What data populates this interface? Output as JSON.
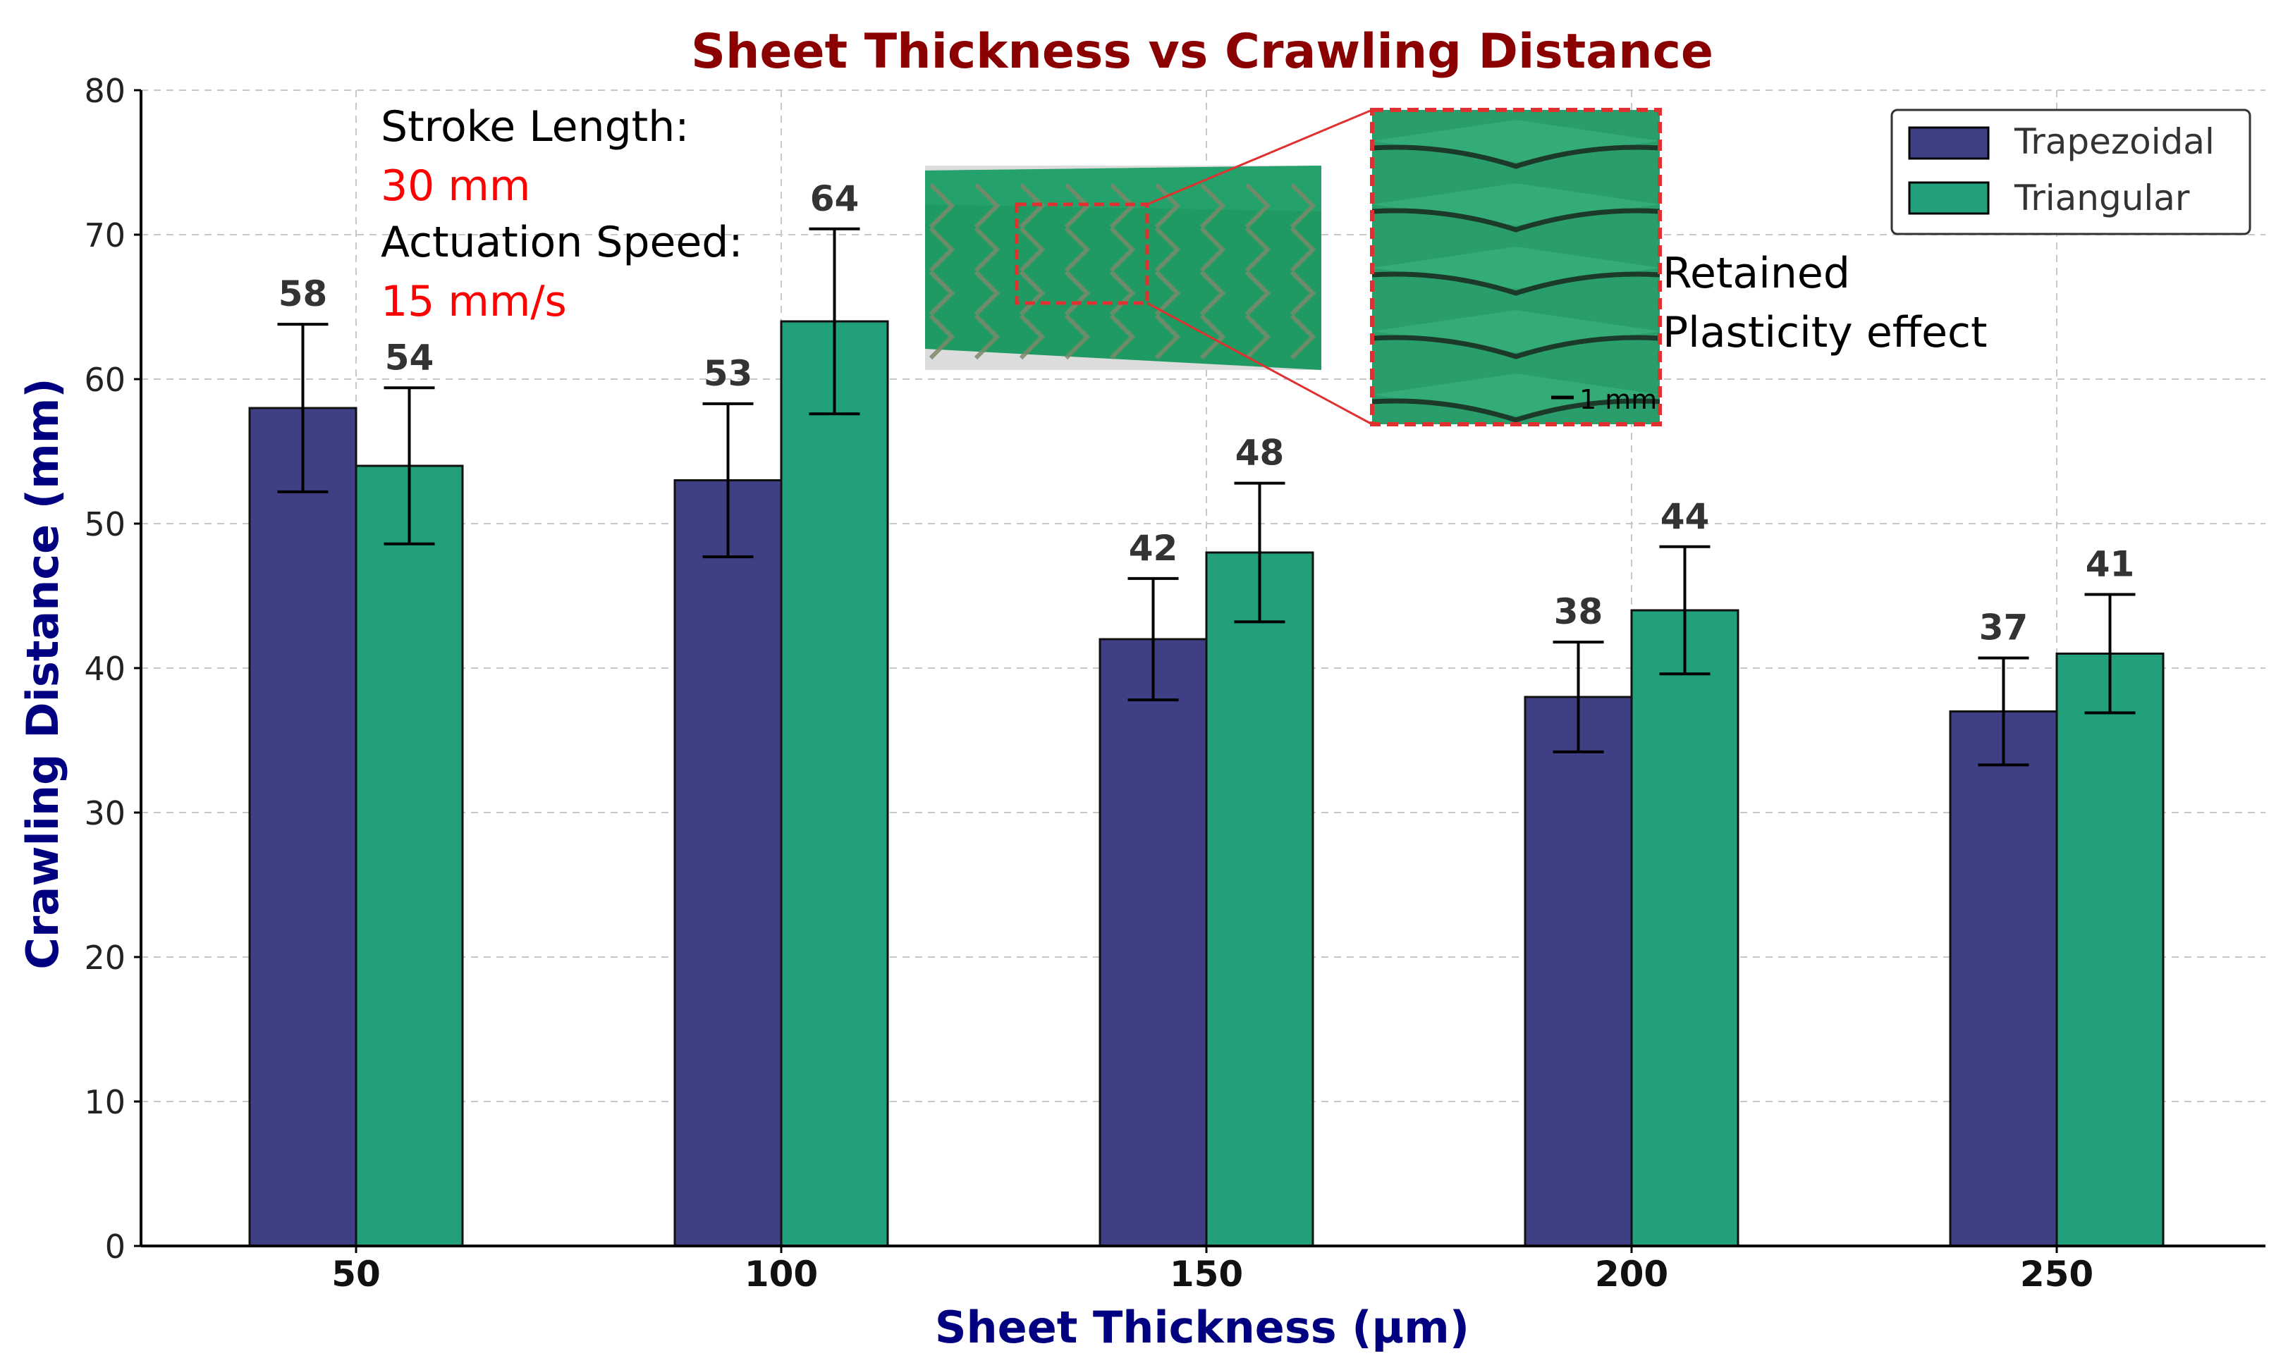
{
  "chart_data": {
    "type": "bar",
    "title": "Sheet Thickness vs Crawling Distance",
    "xlabel": "Sheet Thickness (µm)",
    "ylabel": "Crawling Distance (mm)",
    "categories": [
      "50",
      "100",
      "150",
      "200",
      "250"
    ],
    "ylim": [
      0,
      80
    ],
    "yticks": [
      0,
      10,
      20,
      30,
      40,
      50,
      60,
      70,
      80
    ],
    "grid": true,
    "legend_position": "top-right",
    "series": [
      {
        "name": "Trapezoidal",
        "color": "#3f3f85",
        "values": [
          58,
          53,
          42,
          38,
          37
        ],
        "errors": [
          5.8,
          5.3,
          4.2,
          3.8,
          3.7
        ],
        "value_labels": [
          "58",
          "53",
          "42",
          "38",
          "37"
        ]
      },
      {
        "name": "Triangular",
        "color": "#22a07c",
        "values": [
          54,
          64,
          48,
          44,
          41
        ],
        "errors": [
          5.4,
          6.4,
          4.8,
          4.4,
          4.1
        ],
        "value_labels": [
          "54",
          "64",
          "48",
          "44",
          "41"
        ]
      }
    ],
    "annotations": {
      "stroke_label": "Stroke Length:",
      "stroke_value": "30 mm",
      "speed_label": "Actuation Speed:",
      "speed_value": "15 mm/s",
      "effect_line1": "Retained",
      "effect_line2": "Plasticity effect",
      "scale_bar": "1 mm"
    },
    "colors": {
      "title": "#8b0000",
      "axis_label": "#000080",
      "annotation_value": "#ff0000",
      "inset_border": "#e03030",
      "sheet_green": "#1f9a63"
    }
  }
}
